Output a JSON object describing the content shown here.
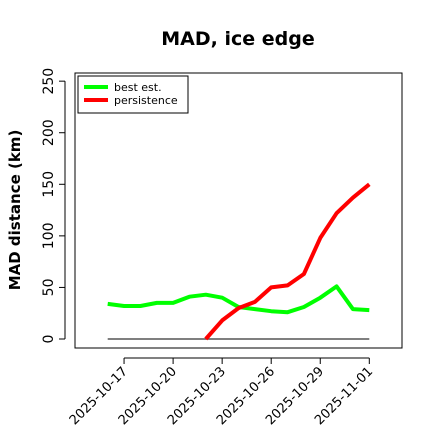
{
  "chart_data": {
    "type": "line",
    "title": "MAD, ice edge",
    "xlabel": "",
    "ylabel": "MAD distance (km)",
    "xlim": [
      "2025-10-14",
      "2025-11-03"
    ],
    "ylim": [
      0,
      255
    ],
    "yticks": [
      0,
      50,
      100,
      150,
      200,
      250
    ],
    "xticks": [
      "2025-10-17",
      "2025-10-20",
      "2025-10-23",
      "2025-10-26",
      "2025-10-29",
      "2025-11-01"
    ],
    "grid": false,
    "legend_position": "top-left",
    "reference_line": {
      "y": 0,
      "from": "2025-10-16",
      "to": "2025-11-01",
      "color": "#555555"
    },
    "series": [
      {
        "name": "best est.",
        "color": "#00ff00",
        "x": [
          "2025-10-16",
          "2025-10-17",
          "2025-10-18",
          "2025-10-19",
          "2025-10-20",
          "2025-10-21",
          "2025-10-22",
          "2025-10-23",
          "2025-10-24",
          "2025-10-25",
          "2025-10-26",
          "2025-10-27",
          "2025-10-28",
          "2025-10-29",
          "2025-10-30",
          "2025-10-31",
          "2025-11-01"
        ],
        "values": [
          34,
          32,
          32,
          35,
          35,
          41,
          43,
          40,
          31,
          29,
          27,
          26,
          31,
          40,
          51,
          29,
          28
        ]
      },
      {
        "name": "persistence",
        "color": "#ff0000",
        "x": [
          "2025-10-22",
          "2025-10-23",
          "2025-10-24",
          "2025-10-25",
          "2025-10-26",
          "2025-10-27",
          "2025-10-28",
          "2025-10-29",
          "2025-10-30",
          "2025-10-31",
          "2025-11-01"
        ],
        "values": [
          0,
          18,
          30,
          36,
          50,
          52,
          63,
          98,
          122,
          137,
          150
        ]
      }
    ]
  }
}
